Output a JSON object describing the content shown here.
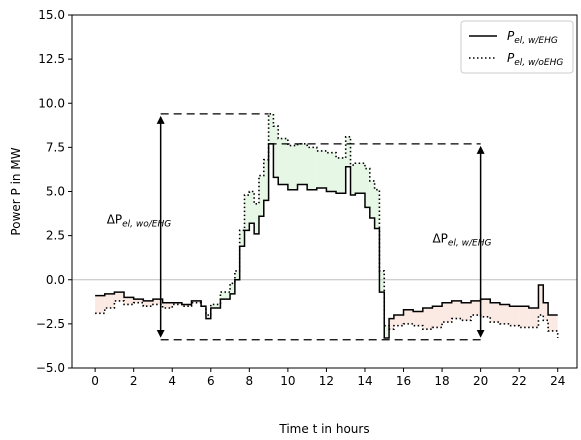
{
  "chart_data": {
    "type": "line",
    "xlabel": "Time t in hours",
    "ylabel": "Power P in MW",
    "xlim": [
      -1.2,
      25.0
    ],
    "ylim": [
      -5.0,
      15.0
    ],
    "x_ticks": [
      0,
      2,
      4,
      6,
      8,
      10,
      12,
      14,
      16,
      18,
      20,
      22,
      24
    ],
    "y_ticks": [
      -5.0,
      -2.5,
      0.0,
      2.5,
      5.0,
      7.5,
      10.0,
      12.5,
      15.0
    ],
    "y_tick_labels": [
      "−5.0",
      "−2.5",
      "0.0",
      "2.5",
      "5.0",
      "7.5",
      "10.0",
      "12.5",
      "15.0"
    ],
    "legend_position": "top-right",
    "grid": false,
    "zero_line": 0,
    "series": [
      {
        "name": "P_el,w/EHG",
        "name_main": "P",
        "name_sub": "el, w/EHG",
        "style": "solid",
        "color": "#000000",
        "x": [
          0,
          0.5,
          1,
          1.5,
          2,
          2.5,
          3,
          3.5,
          4,
          4.5,
          5,
          5.5,
          5.75,
          6,
          6.5,
          7,
          7.25,
          7.5,
          7.75,
          8,
          8.25,
          8.5,
          8.75,
          9,
          9.25,
          9.5,
          10,
          10.5,
          11,
          11.5,
          12,
          12.5,
          13,
          13.25,
          13.5,
          14,
          14.25,
          14.5,
          14.75,
          15,
          15.25,
          15.5,
          16,
          16.5,
          17,
          17.5,
          18,
          18.5,
          19,
          19.5,
          20,
          20.5,
          21,
          21.5,
          22,
          22.5,
          23,
          23.25,
          23.5,
          24
        ],
        "y": [
          -0.9,
          -0.8,
          -0.7,
          -1.0,
          -1.1,
          -1.2,
          -1.1,
          -1.3,
          -1.3,
          -1.4,
          -1.2,
          -1.5,
          -2.2,
          -1.6,
          -1.1,
          -0.8,
          0.0,
          1.9,
          2.8,
          3.2,
          2.6,
          3.6,
          4.5,
          7.7,
          5.8,
          5.4,
          5.1,
          5.4,
          5.1,
          5.2,
          5.0,
          4.9,
          6.4,
          4.8,
          4.9,
          4.1,
          3.5,
          2.9,
          -0.7,
          -3.3,
          -2.2,
          -2.0,
          -1.7,
          -1.8,
          -1.6,
          -1.5,
          -1.3,
          -1.2,
          -1.3,
          -1.2,
          -1.1,
          -1.3,
          -1.4,
          -1.5,
          -1.5,
          -1.6,
          -0.3,
          -1.3,
          -2.0,
          -2.0
        ]
      },
      {
        "name": "P_el,w/oEHG",
        "name_main": "P",
        "name_sub": "el, w/oEHG",
        "style": "dotted",
        "color": "#000000",
        "x": [
          0,
          0.5,
          1,
          1.5,
          2,
          2.5,
          3,
          3.5,
          4,
          4.5,
          5,
          5.5,
          5.75,
          6,
          6.5,
          7,
          7.25,
          7.5,
          7.75,
          8,
          8.25,
          8.5,
          8.75,
          9,
          9.25,
          9.5,
          10,
          10.5,
          11,
          11.5,
          12,
          12.5,
          13,
          13.25,
          13.5,
          14,
          14.25,
          14.5,
          14.75,
          15,
          15.25,
          15.5,
          16,
          16.5,
          17,
          17.5,
          18,
          18.5,
          19,
          19.5,
          20,
          20.5,
          21,
          21.5,
          22,
          22.5,
          23,
          23.25,
          23.5,
          24
        ],
        "y": [
          -1.9,
          -1.6,
          -1.2,
          -1.4,
          -1.3,
          -1.5,
          -1.4,
          -1.6,
          -1.4,
          -1.5,
          -1.3,
          -1.5,
          -2.0,
          -1.4,
          -0.7,
          -0.2,
          0.5,
          2.8,
          4.8,
          5.0,
          4.3,
          5.9,
          6.8,
          9.4,
          8.7,
          8.0,
          7.6,
          7.7,
          7.5,
          7.3,
          7.2,
          6.9,
          8.1,
          6.5,
          6.6,
          6.3,
          5.6,
          5.1,
          0.5,
          -2.6,
          -2.8,
          -2.6,
          -2.5,
          -2.6,
          -2.8,
          -2.7,
          -2.4,
          -2.2,
          -2.3,
          -2.0,
          -2.1,
          -2.4,
          -2.5,
          -2.6,
          -2.7,
          -2.7,
          -2.0,
          -2.3,
          -2.9,
          -3.3
        ]
      }
    ],
    "fill_above_color": "#e6f7e6",
    "fill_below_color": "#fbe9e4",
    "annotations": [
      {
        "label_main": "ΔP",
        "label_sub": "el, wo/EHG",
        "arrow_x": 3.4,
        "from": -3.4,
        "to": 9.4,
        "text_x": 0.6,
        "text_y": 3.2,
        "dash_from_x": 3.4,
        "dash_to_x": 9.0
      },
      {
        "label_main": "ΔP",
        "label_sub": "el, w/EHG",
        "arrow_x": 20.0,
        "from": -3.4,
        "to": 7.7,
        "text_x": 17.5,
        "text_y": 2.1,
        "dash_from_x": 9.0,
        "dash_to_x": 20.0,
        "low_dash_from_x": 3.4,
        "low_dash_to_x": 20.0
      }
    ]
  }
}
